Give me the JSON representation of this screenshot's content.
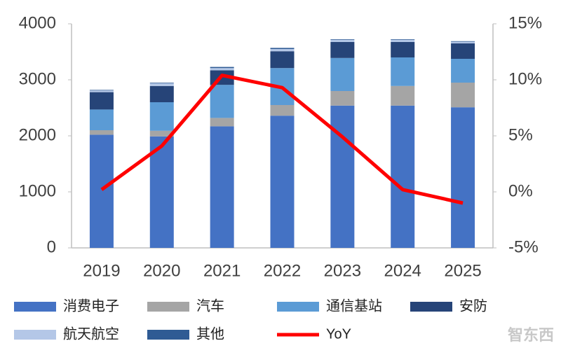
{
  "chart_data": {
    "type": "bar",
    "stacked": true,
    "categories": [
      "2019",
      "2020",
      "2021",
      "2022",
      "2023",
      "2024",
      "2025"
    ],
    "series": [
      {
        "name": "消费电子",
        "color": "#4472c4",
        "values": [
          2020,
          1990,
          2170,
          2360,
          2540,
          2540,
          2510
        ]
      },
      {
        "name": "汽车",
        "color": "#a5a5a5",
        "values": [
          80,
          100,
          150,
          190,
          260,
          350,
          440
        ]
      },
      {
        "name": "通信基站",
        "color": "#5b9bd5",
        "values": [
          370,
          510,
          590,
          660,
          590,
          510,
          425
        ]
      },
      {
        "name": "安防",
        "color": "#264478",
        "values": [
          310,
          290,
          260,
          300,
          285,
          275,
          275
        ]
      },
      {
        "name": "航天航空",
        "color": "#b4c7e7",
        "values": [
          30,
          50,
          40,
          40,
          40,
          40,
          30
        ]
      },
      {
        "name": "其他",
        "color": "#2f5b94",
        "values": [
          10,
          10,
          20,
          20,
          10,
          10,
          10
        ]
      },
      {
        "name": "YoY",
        "color": "#ff0000",
        "type": "line",
        "axis": "y2",
        "values": [
          0.2,
          4.1,
          10.4,
          9.3,
          4.9,
          0.2,
          -1.0
        ]
      }
    ],
    "ylim": [
      0,
      4000
    ],
    "yticks": [
      0,
      1000,
      2000,
      3000,
      4000
    ],
    "y2lim": [
      -5,
      15
    ],
    "y2ticks": [
      {
        "value": -5,
        "label": "-5%"
      },
      {
        "value": 0,
        "label": "0%"
      },
      {
        "value": 5,
        "label": "5%"
      },
      {
        "value": 10,
        "label": "10%"
      },
      {
        "value": 15,
        "label": "15%"
      }
    ],
    "watermark": "智东西"
  }
}
